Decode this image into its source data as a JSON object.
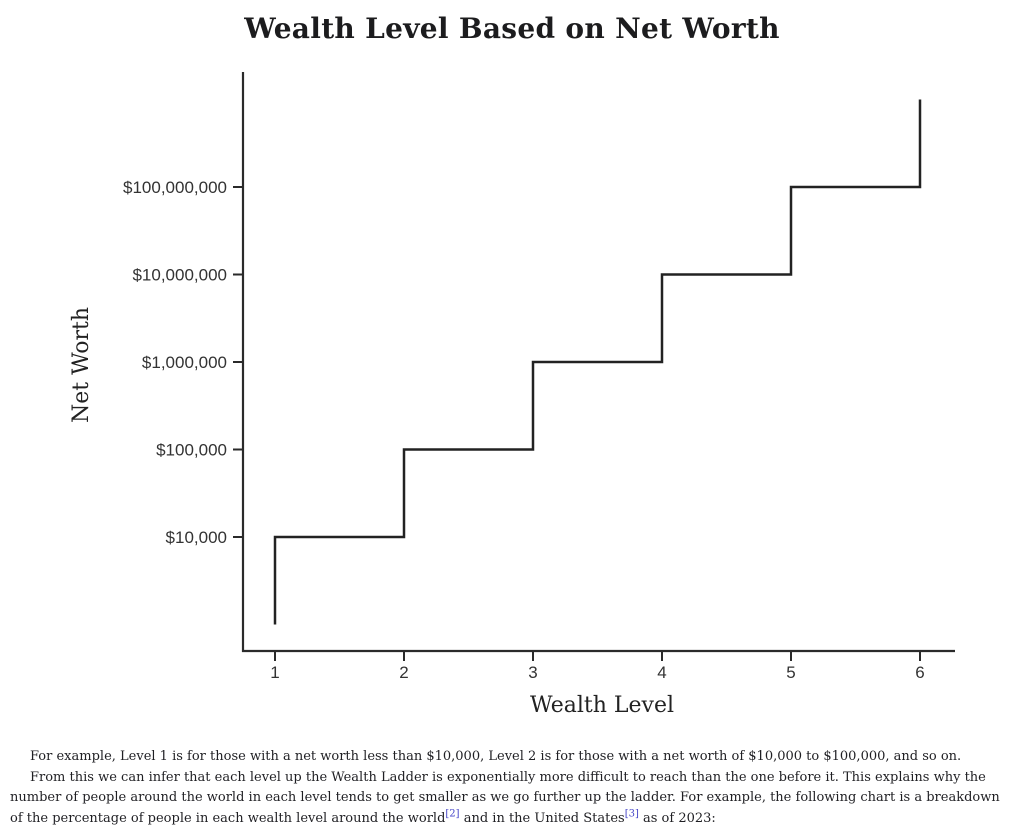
{
  "chart_data": {
    "type": "line",
    "subtype": "step",
    "title": "Wealth Level Based on Net Worth",
    "xlabel": "Wealth Level",
    "ylabel": "Net Worth",
    "x_ticks": [
      "1",
      "2",
      "3",
      "4",
      "5",
      "6"
    ],
    "y_ticks": [
      {
        "value": 10000,
        "label": "$10,000"
      },
      {
        "value": 100000,
        "label": "$100,000"
      },
      {
        "value": 1000000,
        "label": "$1,000,000"
      },
      {
        "value": 10000000,
        "label": "$10,000,000"
      },
      {
        "value": 100000000,
        "label": "$100,000,000"
      }
    ],
    "y_scale": "log",
    "xlim": [
      1,
      6
    ],
    "ylim": [
      1000,
      1000000000
    ],
    "grid": false,
    "legend": false,
    "steps": [
      [
        1,
        1000
      ],
      [
        1,
        10000
      ],
      [
        2,
        10000
      ],
      [
        2,
        100000
      ],
      [
        3,
        100000
      ],
      [
        3,
        1000000
      ],
      [
        4,
        1000000
      ],
      [
        4,
        10000000
      ],
      [
        5,
        10000000
      ],
      [
        5,
        100000000
      ],
      [
        6,
        100000000
      ],
      [
        6,
        1000000000
      ]
    ],
    "line_color": "#222222",
    "axis_color": "#2a2a2a"
  },
  "article": {
    "paragraph1": "For example, Level 1 is for those with a net worth less than $10,000, Level 2 is for those with a net worth of $10,000 to $100,000, and so on.",
    "paragraph2_part1": "From this we can infer that each level up the Wealth Ladder is exponentially more difficult to reach than the one before it. This explains why the number of people around the world in each level tends to get smaller as we go further up the ladder. For example, the following chart is a breakdown of the percentage of people in each wealth level around the world",
    "citation1": "[2]",
    "paragraph2_part2": " and in the United States",
    "citation2": "[3]",
    "paragraph2_part3": " as of 2023:"
  }
}
